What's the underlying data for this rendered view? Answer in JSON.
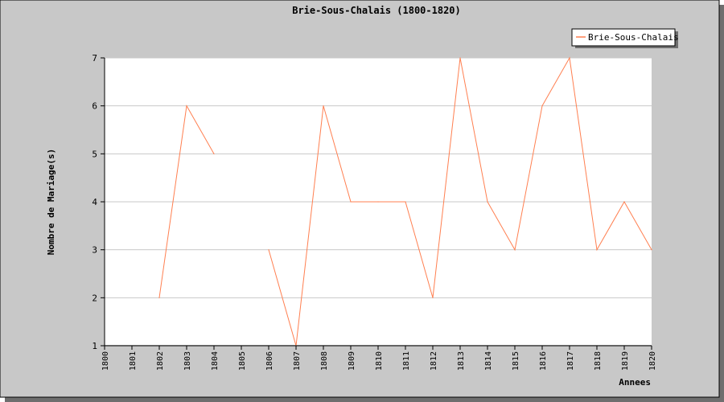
{
  "chart_data": {
    "type": "line",
    "title": "Brie-Sous-Chalais (1800-1820)",
    "xlabel": "Annees",
    "ylabel": "Nombre de Mariage(s)",
    "categories": [
      "1800",
      "1801",
      "1802",
      "1803",
      "1804",
      "1805",
      "1806",
      "1807",
      "1808",
      "1809",
      "1810",
      "1811",
      "1812",
      "1813",
      "1814",
      "1815",
      "1816",
      "1817",
      "1818",
      "1819",
      "1820"
    ],
    "ylim": [
      1,
      7
    ],
    "yticks": [
      "1",
      "2",
      "3",
      "4",
      "5",
      "6",
      "7"
    ],
    "grid": true,
    "legend": {
      "position": "top-right"
    },
    "series": [
      {
        "name": "Brie-Sous-Chalais",
        "color": "#ff7f50",
        "values": [
          null,
          null,
          2,
          6,
          5,
          null,
          3,
          1,
          6,
          4,
          4,
          4,
          2,
          7,
          4,
          3,
          6,
          7,
          3,
          4,
          3
        ]
      }
    ]
  },
  "colors": {
    "background": "#c8c8c8",
    "plot": "#ffffff",
    "grid": "#c8c8c8",
    "frame": "#000000"
  }
}
